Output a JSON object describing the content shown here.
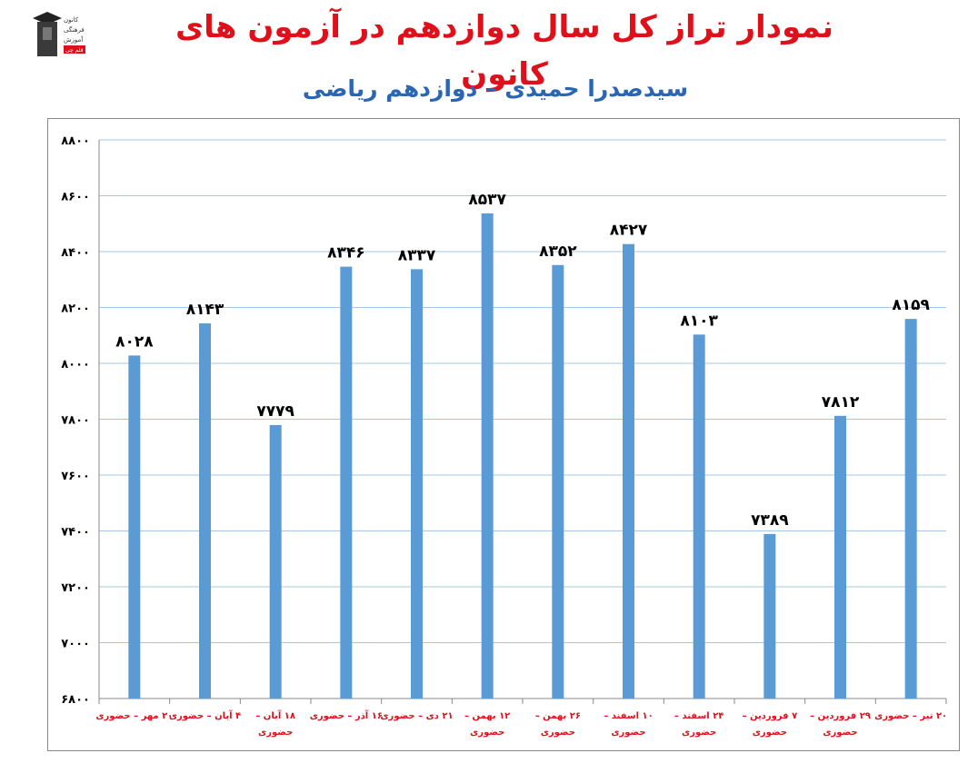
{
  "header": {
    "title": "نمودار تراز کل سال دوازدهم در آزمون های کانون",
    "subtitle": "سیدصدرا حمیدی – دوازدهم ریاضی",
    "logo_lines": [
      "کانون",
      "فرهنگی",
      "آموزش",
      "قلم چی"
    ]
  },
  "colors": {
    "bar": "#5b9bd5",
    "title": "#e0101a",
    "subtitle": "#2a66b4",
    "category_text": "#e0101a",
    "grid": "#a6c8e6"
  },
  "chart_data": {
    "type": "bar",
    "title": "",
    "xlabel": "",
    "ylabel": "",
    "ylim": [
      6800,
      8800
    ],
    "yticks": [
      6800,
      7000,
      7200,
      7400,
      7600,
      7800,
      8000,
      8200,
      8400,
      8600,
      8800
    ],
    "ytick_labels": [
      "۶۸۰۰",
      "۷۰۰۰",
      "۷۲۰۰",
      "۷۴۰۰",
      "۷۶۰۰",
      "۷۸۰۰",
      "۸۰۰۰",
      "۸۲۰۰",
      "۸۴۰۰",
      "۸۶۰۰",
      "۸۸۰۰"
    ],
    "grid": true,
    "categories": [
      [
        "۲۰ مهر – حضوری"
      ],
      [
        "۴ آبان – حضوری"
      ],
      [
        "۱۸ آبان –",
        "حضوری"
      ],
      [
        "۱۶ آذر – حضوری"
      ],
      [
        "۲۱ دی – حضوری"
      ],
      [
        "۱۲ بهمن –",
        "حضوری"
      ],
      [
        "۲۶ بهمن –",
        "حضوری"
      ],
      [
        "۱۰ اسفند –",
        "حضوری"
      ],
      [
        "۲۴ اسفند –",
        "حضوری"
      ],
      [
        "۷ فروردین –",
        "حضوری"
      ],
      [
        "۲۹ فروردین –",
        "حضوری"
      ],
      [
        "۲۰ تیر – حضوری"
      ]
    ],
    "values": [
      8028,
      8143,
      7779,
      8346,
      8337,
      8537,
      8352,
      8427,
      8103,
      7389,
      7812,
      8159
    ],
    "data_labels": [
      "۸۰۲۸",
      "۸۱۴۳",
      "۷۷۷۹",
      "۸۳۴۶",
      "۸۳۳۷",
      "۸۵۳۷",
      "۸۳۵۲",
      "۸۴۲۷",
      "۸۱۰۳",
      "۷۳۸۹",
      "۷۸۱۲",
      "۸۱۵۹"
    ]
  }
}
